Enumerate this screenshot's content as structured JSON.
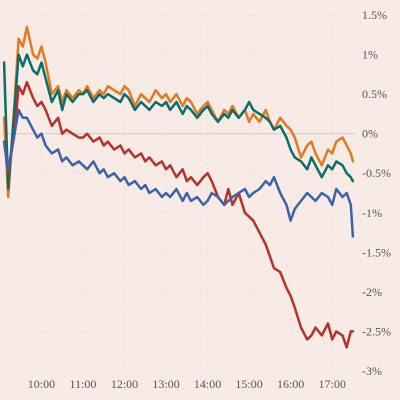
{
  "colors": {
    "background": "#f8ebe6",
    "orange": "#e07a24",
    "teal": "#0a6e69",
    "red": "#b7322c",
    "blue": "#3a62ad"
  },
  "chart_data": {
    "type": "line",
    "title": "",
    "xlabel": "",
    "ylabel": "",
    "grid": true,
    "y_axis_position": "right",
    "x_ticks": [
      "10:00",
      "11:00",
      "12:00",
      "13:00",
      "14:00",
      "15:00",
      "16:00",
      "17:00"
    ],
    "y_ticks": [
      "1.5%",
      "1%",
      "0.5%",
      "0%",
      "-0.5%",
      "-1%",
      "-1.5%",
      "-2%",
      "-2.5%",
      "-3%"
    ],
    "x_unit": "hour",
    "xlim": [
      9.05,
      17.55
    ],
    "ylim": [
      -3.0,
      1.5
    ],
    "series": [
      {
        "color": "orange",
        "x": [
          9.1,
          9.2,
          9.35,
          9.45,
          9.55,
          9.65,
          9.8,
          9.9,
          10.0,
          10.1,
          10.25,
          10.4,
          10.5,
          10.6,
          10.75,
          10.9,
          11.0,
          11.1,
          11.25,
          11.4,
          11.5,
          11.6,
          11.75,
          11.9,
          12.0,
          12.1,
          12.25,
          12.4,
          12.5,
          12.6,
          12.75,
          12.9,
          13.0,
          13.1,
          13.25,
          13.4,
          13.5,
          13.6,
          13.75,
          13.9,
          14.0,
          14.1,
          14.25,
          14.4,
          14.5,
          14.6,
          14.75,
          14.9,
          15.0,
          15.1,
          15.25,
          15.4,
          15.5,
          15.6,
          15.75,
          15.9,
          16.0,
          16.1,
          16.25,
          16.4,
          16.5,
          16.6,
          16.75,
          16.9,
          17.0,
          17.1,
          17.25,
          17.35,
          17.45,
          17.5
        ],
        "y": [
          0.2,
          -0.8,
          0.4,
          1.2,
          1.1,
          1.35,
          1.0,
          0.95,
          1.1,
          0.9,
          0.5,
          0.6,
          0.4,
          0.55,
          0.45,
          0.55,
          0.5,
          0.6,
          0.45,
          0.55,
          0.5,
          0.6,
          0.55,
          0.5,
          0.6,
          0.55,
          0.35,
          0.5,
          0.45,
          0.4,
          0.55,
          0.45,
          0.5,
          0.4,
          0.5,
          0.35,
          0.45,
          0.4,
          0.25,
          0.35,
          0.4,
          0.3,
          0.15,
          0.3,
          0.25,
          0.35,
          0.2,
          0.3,
          0.15,
          0.25,
          0.15,
          0.3,
          0.15,
          0.05,
          0.2,
          0.1,
          0.05,
          -0.05,
          -0.3,
          -0.15,
          -0.1,
          -0.25,
          -0.4,
          -0.2,
          -0.25,
          -0.1,
          -0.05,
          -0.15,
          -0.25,
          -0.35
        ]
      },
      {
        "color": "teal",
        "x": [
          9.1,
          9.2,
          9.35,
          9.45,
          9.55,
          9.65,
          9.8,
          9.9,
          10.0,
          10.1,
          10.25,
          10.4,
          10.5,
          10.6,
          10.75,
          10.9,
          11.0,
          11.1,
          11.25,
          11.4,
          11.5,
          11.6,
          11.75,
          11.9,
          12.0,
          12.1,
          12.25,
          12.4,
          12.5,
          12.6,
          12.75,
          12.9,
          13.0,
          13.1,
          13.25,
          13.4,
          13.5,
          13.6,
          13.75,
          13.9,
          14.0,
          14.1,
          14.25,
          14.4,
          14.5,
          14.6,
          14.75,
          14.9,
          15.0,
          15.1,
          15.25,
          15.4,
          15.5,
          15.6,
          15.75,
          15.9,
          16.0,
          16.1,
          16.25,
          16.4,
          16.5,
          16.6,
          16.75,
          16.9,
          17.0,
          17.1,
          17.25,
          17.35,
          17.45,
          17.5
        ],
        "y": [
          0.9,
          -0.7,
          0.3,
          1.0,
          0.85,
          1.0,
          0.8,
          0.75,
          0.9,
          0.7,
          0.4,
          0.55,
          0.3,
          0.5,
          0.4,
          0.5,
          0.5,
          0.55,
          0.4,
          0.5,
          0.45,
          0.5,
          0.45,
          0.4,
          0.5,
          0.45,
          0.3,
          0.4,
          0.35,
          0.3,
          0.4,
          0.35,
          0.4,
          0.3,
          0.4,
          0.25,
          0.35,
          0.3,
          0.2,
          0.3,
          0.35,
          0.25,
          0.15,
          0.25,
          0.2,
          0.3,
          0.2,
          0.3,
          0.4,
          0.3,
          0.25,
          0.2,
          0.15,
          0.05,
          0.1,
          -0.05,
          -0.2,
          -0.3,
          -0.35,
          -0.45,
          -0.3,
          -0.4,
          -0.55,
          -0.4,
          -0.45,
          -0.35,
          -0.4,
          -0.5,
          -0.55,
          -0.6
        ]
      },
      {
        "color": "red",
        "x": [
          9.1,
          9.2,
          9.35,
          9.45,
          9.55,
          9.65,
          9.8,
          9.9,
          10.0,
          10.1,
          10.25,
          10.4,
          10.5,
          10.6,
          10.75,
          10.9,
          11.0,
          11.1,
          11.25,
          11.4,
          11.5,
          11.6,
          11.75,
          11.9,
          12.0,
          12.1,
          12.25,
          12.4,
          12.5,
          12.6,
          12.75,
          12.9,
          13.0,
          13.1,
          13.25,
          13.4,
          13.5,
          13.6,
          13.75,
          13.9,
          14.0,
          14.1,
          14.25,
          14.4,
          14.5,
          14.6,
          14.75,
          14.9,
          15.0,
          15.1,
          15.25,
          15.4,
          15.5,
          15.6,
          15.75,
          15.9,
          16.0,
          16.1,
          16.25,
          16.4,
          16.5,
          16.6,
          16.75,
          16.9,
          17.0,
          17.1,
          17.25,
          17.35,
          17.45,
          17.5
        ],
        "y": [
          -0.1,
          -0.5,
          0.0,
          0.6,
          0.5,
          0.65,
          0.45,
          0.35,
          0.4,
          0.3,
          0.1,
          0.2,
          0.0,
          0.05,
          0.0,
          -0.05,
          -0.05,
          0.0,
          -0.1,
          -0.05,
          -0.15,
          -0.1,
          -0.2,
          -0.15,
          -0.25,
          -0.2,
          -0.3,
          -0.25,
          -0.35,
          -0.3,
          -0.4,
          -0.35,
          -0.45,
          -0.4,
          -0.55,
          -0.45,
          -0.6,
          -0.55,
          -0.65,
          -0.55,
          -0.5,
          -0.6,
          -0.8,
          -0.9,
          -0.7,
          -0.9,
          -0.75,
          -1.0,
          -1.05,
          -1.1,
          -1.25,
          -1.4,
          -1.55,
          -1.7,
          -1.75,
          -1.95,
          -2.05,
          -2.2,
          -2.45,
          -2.6,
          -2.55,
          -2.45,
          -2.55,
          -2.4,
          -2.6,
          -2.5,
          -2.55,
          -2.7,
          -2.5,
          -2.5
        ]
      },
      {
        "color": "blue",
        "x": [
          9.1,
          9.2,
          9.35,
          9.45,
          9.55,
          9.65,
          9.8,
          9.9,
          10.0,
          10.1,
          10.25,
          10.4,
          10.5,
          10.6,
          10.75,
          10.9,
          11.0,
          11.1,
          11.25,
          11.4,
          11.5,
          11.6,
          11.75,
          11.9,
          12.0,
          12.1,
          12.25,
          12.4,
          12.5,
          12.6,
          12.75,
          12.9,
          13.0,
          13.1,
          13.25,
          13.4,
          13.5,
          13.6,
          13.75,
          13.9,
          14.0,
          14.1,
          14.25,
          14.4,
          14.5,
          14.6,
          14.75,
          14.9,
          15.0,
          15.1,
          15.25,
          15.4,
          15.5,
          15.6,
          15.75,
          15.9,
          16.0,
          16.1,
          16.25,
          16.4,
          16.5,
          16.6,
          16.75,
          16.9,
          17.0,
          17.1,
          17.25,
          17.35,
          17.45,
          17.5
        ],
        "y": [
          -0.1,
          -0.45,
          0.0,
          0.3,
          0.2,
          0.2,
          0.05,
          -0.05,
          0.0,
          -0.15,
          -0.25,
          -0.2,
          -0.35,
          -0.3,
          -0.4,
          -0.35,
          -0.4,
          -0.45,
          -0.35,
          -0.5,
          -0.45,
          -0.55,
          -0.5,
          -0.6,
          -0.55,
          -0.65,
          -0.6,
          -0.7,
          -0.65,
          -0.75,
          -0.7,
          -0.8,
          -0.75,
          -0.8,
          -0.7,
          -0.85,
          -0.75,
          -0.85,
          -0.8,
          -0.9,
          -0.85,
          -0.75,
          -0.8,
          -0.9,
          -0.85,
          -0.8,
          -0.75,
          -0.7,
          -0.8,
          -0.75,
          -0.7,
          -0.6,
          -0.65,
          -0.55,
          -0.75,
          -0.9,
          -1.1,
          -0.95,
          -0.85,
          -0.75,
          -0.8,
          -0.85,
          -0.75,
          -0.8,
          -0.9,
          -0.7,
          -0.8,
          -0.75,
          -0.9,
          -1.3
        ]
      }
    ]
  }
}
